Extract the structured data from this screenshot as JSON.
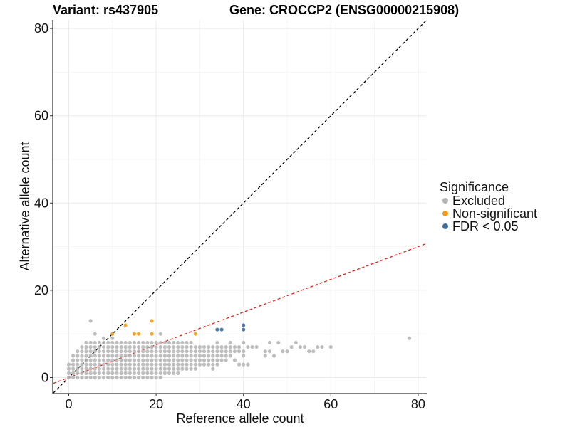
{
  "header": {
    "variant_label": "Variant: rs437905",
    "gene_label": "Gene: CROCCP2 (ENSG00000215908)"
  },
  "legend": {
    "title": "Significance",
    "items": [
      {
        "label": "Excluded",
        "color": "#b3b3b3"
      },
      {
        "label": "Non-significant",
        "color": "#f29e1c"
      },
      {
        "label": "FDR < 0.05",
        "color": "#3d6ea0"
      }
    ]
  },
  "chart_data": {
    "type": "scatter",
    "xlabel": "Reference allele count",
    "ylabel": "Alternative allele count",
    "xlim": [
      -3.5,
      82
    ],
    "ylim": [
      -3.5,
      82
    ],
    "xticks": [
      0,
      20,
      40,
      60,
      80
    ],
    "yticks": [
      0,
      20,
      40,
      60,
      80
    ],
    "grid": true,
    "reference_lines": [
      {
        "name": "y = x",
        "slope": 1.0,
        "intercept": 0,
        "color": "#000000",
        "dash": true
      },
      {
        "name": "expected ratio",
        "slope": 0.375,
        "intercept": 0,
        "color": "#e0201a",
        "dash": true
      }
    ],
    "series": [
      {
        "name": "Non-significant",
        "color": "#f29e1c",
        "points": [
          [
            10,
            10
          ],
          [
            13,
            12
          ],
          [
            15,
            10
          ],
          [
            16,
            10
          ],
          [
            19,
            13
          ],
          [
            19,
            10
          ],
          [
            29,
            10
          ]
        ]
      },
      {
        "name": "FDR < 0.05",
        "color": "#3d6ea0",
        "points": [
          [
            34,
            11
          ],
          [
            35,
            11
          ],
          [
            40,
            12
          ],
          [
            40,
            11
          ]
        ]
      },
      {
        "name": "Excluded",
        "color": "#b3b3b3",
        "points": [
          [
            0,
            0
          ],
          [
            0,
            1
          ],
          [
            0,
            2
          ],
          [
            0,
            3
          ],
          [
            1,
            0
          ],
          [
            1,
            1
          ],
          [
            1,
            2
          ],
          [
            1,
            3
          ],
          [
            1,
            4
          ],
          [
            1,
            5
          ],
          [
            2,
            0
          ],
          [
            2,
            1
          ],
          [
            2,
            2
          ],
          [
            2,
            3
          ],
          [
            2,
            4
          ],
          [
            2,
            5
          ],
          [
            2,
            6
          ],
          [
            3,
            0
          ],
          [
            3,
            1
          ],
          [
            3,
            2
          ],
          [
            3,
            3
          ],
          [
            3,
            4
          ],
          [
            3,
            5
          ],
          [
            3,
            6
          ],
          [
            3,
            7
          ],
          [
            4,
            0
          ],
          [
            4,
            1
          ],
          [
            4,
            2
          ],
          [
            4,
            3
          ],
          [
            4,
            4
          ],
          [
            4,
            5
          ],
          [
            4,
            6
          ],
          [
            4,
            7
          ],
          [
            4,
            8
          ],
          [
            5,
            0
          ],
          [
            5,
            1
          ],
          [
            5,
            2
          ],
          [
            5,
            3
          ],
          [
            5,
            4
          ],
          [
            5,
            5
          ],
          [
            5,
            6
          ],
          [
            5,
            7
          ],
          [
            5,
            8
          ],
          [
            5,
            13
          ],
          [
            6,
            0
          ],
          [
            6,
            1
          ],
          [
            6,
            2
          ],
          [
            6,
            3
          ],
          [
            6,
            4
          ],
          [
            6,
            5
          ],
          [
            6,
            6
          ],
          [
            6,
            7
          ],
          [
            6,
            8
          ],
          [
            6,
            10
          ],
          [
            7,
            0
          ],
          [
            7,
            1
          ],
          [
            7,
            2
          ],
          [
            7,
            3
          ],
          [
            7,
            4
          ],
          [
            7,
            5
          ],
          [
            7,
            6
          ],
          [
            7,
            7
          ],
          [
            7,
            8
          ],
          [
            8,
            0
          ],
          [
            8,
            1
          ],
          [
            8,
            2
          ],
          [
            8,
            3
          ],
          [
            8,
            4
          ],
          [
            8,
            5
          ],
          [
            8,
            6
          ],
          [
            8,
            7
          ],
          [
            8,
            8
          ],
          [
            8,
            9
          ],
          [
            9,
            0
          ],
          [
            9,
            1
          ],
          [
            9,
            2
          ],
          [
            9,
            3
          ],
          [
            9,
            4
          ],
          [
            9,
            5
          ],
          [
            9,
            6
          ],
          [
            9,
            7
          ],
          [
            9,
            8
          ],
          [
            10,
            0
          ],
          [
            10,
            1
          ],
          [
            10,
            2
          ],
          [
            10,
            3
          ],
          [
            10,
            4
          ],
          [
            10,
            5
          ],
          [
            10,
            6
          ],
          [
            10,
            7
          ],
          [
            10,
            8
          ],
          [
            10,
            9
          ],
          [
            11,
            0
          ],
          [
            11,
            1
          ],
          [
            11,
            2
          ],
          [
            11,
            3
          ],
          [
            11,
            4
          ],
          [
            11,
            5
          ],
          [
            11,
            6
          ],
          [
            11,
            7
          ],
          [
            11,
            8
          ],
          [
            12,
            0
          ],
          [
            12,
            1
          ],
          [
            12,
            2
          ],
          [
            12,
            3
          ],
          [
            12,
            4
          ],
          [
            12,
            5
          ],
          [
            12,
            6
          ],
          [
            12,
            7
          ],
          [
            12,
            8
          ],
          [
            13,
            0
          ],
          [
            13,
            1
          ],
          [
            13,
            2
          ],
          [
            13,
            3
          ],
          [
            13,
            4
          ],
          [
            13,
            5
          ],
          [
            13,
            6
          ],
          [
            13,
            7
          ],
          [
            13,
            8
          ],
          [
            14,
            0
          ],
          [
            14,
            1
          ],
          [
            14,
            2
          ],
          [
            14,
            3
          ],
          [
            14,
            4
          ],
          [
            14,
            5
          ],
          [
            14,
            6
          ],
          [
            14,
            7
          ],
          [
            14,
            8
          ],
          [
            15,
            0
          ],
          [
            15,
            1
          ],
          [
            15,
            2
          ],
          [
            15,
            3
          ],
          [
            15,
            4
          ],
          [
            15,
            5
          ],
          [
            15,
            6
          ],
          [
            15,
            7
          ],
          [
            15,
            8
          ],
          [
            16,
            0
          ],
          [
            16,
            1
          ],
          [
            16,
            2
          ],
          [
            16,
            3
          ],
          [
            16,
            4
          ],
          [
            16,
            5
          ],
          [
            16,
            6
          ],
          [
            16,
            7
          ],
          [
            16,
            8
          ],
          [
            17,
            0
          ],
          [
            17,
            1
          ],
          [
            17,
            2
          ],
          [
            17,
            3
          ],
          [
            17,
            4
          ],
          [
            17,
            5
          ],
          [
            17,
            6
          ],
          [
            17,
            7
          ],
          [
            17,
            8
          ],
          [
            18,
            0
          ],
          [
            18,
            1
          ],
          [
            18,
            2
          ],
          [
            18,
            3
          ],
          [
            18,
            4
          ],
          [
            18,
            5
          ],
          [
            18,
            6
          ],
          [
            18,
            7
          ],
          [
            18,
            8
          ],
          [
            19,
            0
          ],
          [
            19,
            1
          ],
          [
            19,
            2
          ],
          [
            19,
            3
          ],
          [
            19,
            4
          ],
          [
            19,
            5
          ],
          [
            19,
            6
          ],
          [
            19,
            7
          ],
          [
            19,
            8
          ],
          [
            20,
            0
          ],
          [
            20,
            1
          ],
          [
            20,
            2
          ],
          [
            20,
            3
          ],
          [
            20,
            4
          ],
          [
            20,
            5
          ],
          [
            20,
            6
          ],
          [
            20,
            7
          ],
          [
            20,
            8
          ],
          [
            21,
            0
          ],
          [
            21,
            1
          ],
          [
            21,
            2
          ],
          [
            21,
            3
          ],
          [
            21,
            4
          ],
          [
            21,
            5
          ],
          [
            21,
            6
          ],
          [
            21,
            7
          ],
          [
            21,
            8
          ],
          [
            21,
            10
          ],
          [
            22,
            1
          ],
          [
            22,
            2
          ],
          [
            22,
            3
          ],
          [
            22,
            4
          ],
          [
            22,
            5
          ],
          [
            22,
            6
          ],
          [
            22,
            7
          ],
          [
            22,
            8
          ],
          [
            23,
            1
          ],
          [
            23,
            2
          ],
          [
            23,
            3
          ],
          [
            23,
            4
          ],
          [
            23,
            5
          ],
          [
            23,
            6
          ],
          [
            23,
            7
          ],
          [
            23,
            8
          ],
          [
            24,
            1
          ],
          [
            24,
            2
          ],
          [
            24,
            3
          ],
          [
            24,
            4
          ],
          [
            24,
            5
          ],
          [
            24,
            6
          ],
          [
            24,
            7
          ],
          [
            24,
            8
          ],
          [
            25,
            1
          ],
          [
            25,
            2
          ],
          [
            25,
            3
          ],
          [
            25,
            4
          ],
          [
            25,
            5
          ],
          [
            25,
            6
          ],
          [
            25,
            7
          ],
          [
            25,
            8
          ],
          [
            26,
            2
          ],
          [
            26,
            3
          ],
          [
            26,
            4
          ],
          [
            26,
            5
          ],
          [
            26,
            6
          ],
          [
            26,
            7
          ],
          [
            26,
            8
          ],
          [
            27,
            2
          ],
          [
            27,
            3
          ],
          [
            27,
            4
          ],
          [
            27,
            5
          ],
          [
            27,
            6
          ],
          [
            27,
            7
          ],
          [
            27,
            8
          ],
          [
            28,
            2
          ],
          [
            28,
            3
          ],
          [
            28,
            4
          ],
          [
            28,
            5
          ],
          [
            28,
            6
          ],
          [
            28,
            7
          ],
          [
            28,
            8
          ],
          [
            29,
            2
          ],
          [
            29,
            3
          ],
          [
            29,
            4
          ],
          [
            29,
            5
          ],
          [
            29,
            6
          ],
          [
            29,
            7
          ],
          [
            30,
            3
          ],
          [
            30,
            4
          ],
          [
            30,
            5
          ],
          [
            30,
            6
          ],
          [
            30,
            7
          ],
          [
            31,
            3
          ],
          [
            31,
            4
          ],
          [
            31,
            5
          ],
          [
            31,
            6
          ],
          [
            31,
            7
          ],
          [
            32,
            3
          ],
          [
            32,
            4
          ],
          [
            32,
            5
          ],
          [
            32,
            6
          ],
          [
            32,
            7
          ],
          [
            33,
            2
          ],
          [
            33,
            3
          ],
          [
            33,
            4
          ],
          [
            33,
            5
          ],
          [
            33,
            6
          ],
          [
            33,
            7
          ],
          [
            34,
            3
          ],
          [
            34,
            4
          ],
          [
            34,
            5
          ],
          [
            34,
            6
          ],
          [
            34,
            7
          ],
          [
            34,
            8
          ],
          [
            35,
            4
          ],
          [
            35,
            5
          ],
          [
            35,
            6
          ],
          [
            35,
            7
          ],
          [
            36,
            4
          ],
          [
            36,
            5
          ],
          [
            36,
            6
          ],
          [
            36,
            7
          ],
          [
            37,
            5
          ],
          [
            37,
            6
          ],
          [
            37,
            7
          ],
          [
            37,
            8
          ],
          [
            38,
            4
          ],
          [
            38,
            6
          ],
          [
            38,
            7
          ],
          [
            39,
            3
          ],
          [
            39,
            6
          ],
          [
            39,
            7
          ],
          [
            40,
            3
          ],
          [
            40,
            5
          ],
          [
            40,
            6
          ],
          [
            40,
            8
          ],
          [
            41,
            3
          ],
          [
            41,
            7
          ],
          [
            42,
            7
          ],
          [
            43,
            7
          ],
          [
            45,
            6
          ],
          [
            45,
            5
          ],
          [
            46,
            6
          ],
          [
            46,
            8
          ],
          [
            47,
            5
          ],
          [
            48,
            8
          ],
          [
            49,
            6
          ],
          [
            50,
            6
          ],
          [
            51,
            7
          ],
          [
            52,
            8
          ],
          [
            53,
            7
          ],
          [
            54,
            7
          ],
          [
            55,
            6
          ],
          [
            56,
            6
          ],
          [
            57,
            7
          ],
          [
            58,
            7
          ],
          [
            60,
            7
          ],
          [
            78,
            9
          ]
        ]
      }
    ]
  }
}
